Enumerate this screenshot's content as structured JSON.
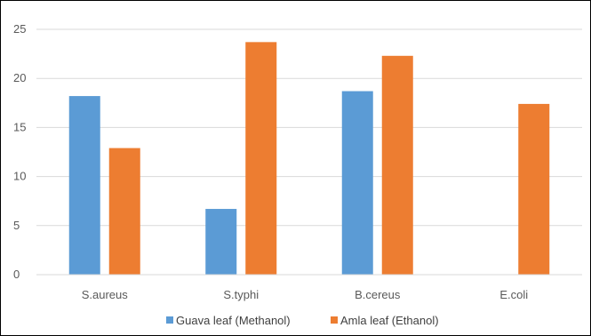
{
  "chart_data": {
    "type": "bar",
    "categories": [
      "S.aureus",
      "S.typhi",
      "B.cereus",
      "E.coli"
    ],
    "series": [
      {
        "name": "Guava leaf (Methanol)",
        "color": "#5b9bd5",
        "values": [
          18.2,
          6.7,
          18.7,
          null
        ]
      },
      {
        "name": "Amla leaf (Ethanol)",
        "color": "#ed7d31",
        "values": [
          12.9,
          23.7,
          22.3,
          17.4
        ]
      }
    ],
    "ylim": [
      0,
      25
    ],
    "yticks": [
      0,
      5,
      10,
      15,
      20,
      25
    ],
    "grid": true,
    "legend_position": "bottom"
  }
}
